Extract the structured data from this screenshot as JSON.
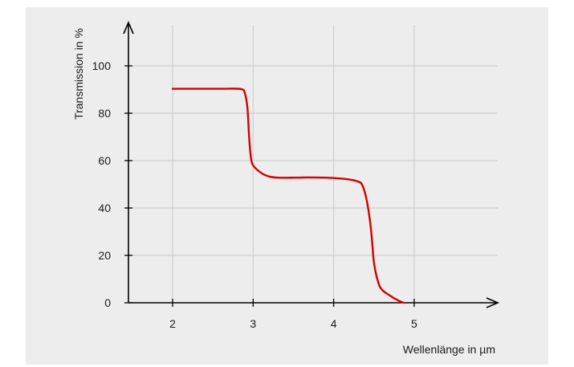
{
  "chart_data": {
    "type": "line",
    "title": "",
    "xlabel": "Wellenlänge in µm",
    "ylabel": "Transmission in %",
    "xlim": [
      1.45,
      5.98
    ],
    "ylim": [
      0,
      100
    ],
    "x_ticks": [
      2,
      3,
      4,
      5
    ],
    "y_ticks": [
      0,
      20,
      40,
      60,
      80,
      100
    ],
    "grid": true,
    "colors": {
      "line": "#d40000",
      "grid": "#c8c8c8",
      "axis": "#000000",
      "background": "#ededed"
    },
    "series": [
      {
        "x": [
          2.0,
          2.3,
          2.6,
          2.85,
          2.9,
          2.93,
          2.95,
          2.97,
          3.0,
          3.1,
          3.2,
          3.3,
          3.5,
          3.7,
          3.9,
          4.1,
          4.2,
          4.3,
          4.35,
          4.4,
          4.45,
          4.48,
          4.5,
          4.55,
          4.6,
          4.7,
          4.8,
          4.87
        ],
        "y": [
          90.3,
          90.3,
          90.3,
          90.2,
          88,
          82,
          70,
          62,
          58,
          54.8,
          53.3,
          52.8,
          52.8,
          52.9,
          52.8,
          52.4,
          52,
          51.2,
          50,
          45,
          35,
          25,
          17,
          9,
          5.5,
          3,
          1,
          0
        ]
      }
    ]
  }
}
